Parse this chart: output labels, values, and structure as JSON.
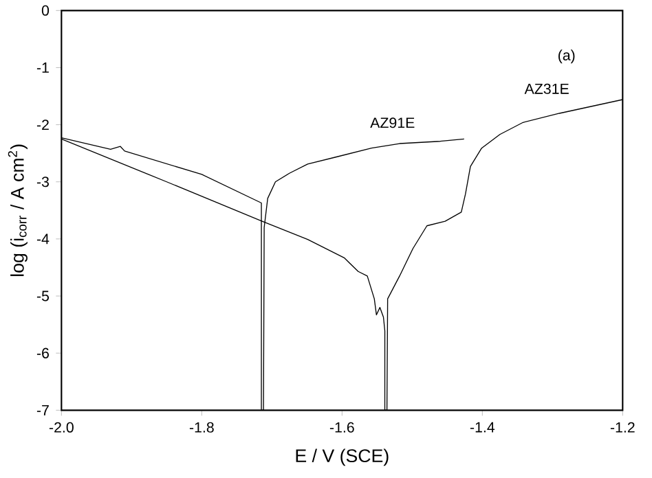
{
  "chart_data": {
    "type": "line",
    "xlabel": "E / V (SCE)",
    "ylabel": "log (i$_{corr}$ / A cm$^{2}$)",
    "annotations": [
      "(a)"
    ],
    "series": [
      {
        "name": "AZ91E",
        "color": "#000000",
        "x": [
          -2.0,
          -1.93,
          -1.916,
          -1.91,
          -1.8,
          -1.715,
          -1.715,
          -1.712,
          -1.711,
          -1.706,
          -1.695,
          -1.675,
          -1.649,
          -1.61,
          -1.558,
          -1.518,
          -1.46,
          -1.426
        ],
        "values": [
          -2.23,
          -2.43,
          -2.38,
          -2.46,
          -2.87,
          -3.37,
          -7.0,
          -7.0,
          -3.8,
          -3.29,
          -3.0,
          -2.85,
          -2.69,
          -2.57,
          -2.41,
          -2.33,
          -2.29,
          -2.25
        ]
      },
      {
        "name": "AZ31E",
        "color": "#000000",
        "x": [
          -2.0,
          -1.85,
          -1.714,
          -1.649,
          -1.597,
          -1.577,
          -1.564,
          -1.554,
          -1.551,
          -1.546,
          -1.541,
          -1.539,
          -1.539,
          -1.536,
          -1.535,
          -1.518,
          -1.499,
          -1.479,
          -1.453,
          -1.43,
          -1.424,
          -1.417,
          -1.401,
          -1.375,
          -1.342,
          -1.29,
          -1.2
        ],
        "values": [
          -2.25,
          -3.0,
          -3.69,
          -4.01,
          -4.33,
          -4.57,
          -4.65,
          -5.05,
          -5.33,
          -5.2,
          -5.37,
          -5.61,
          -7.0,
          -7.0,
          -5.05,
          -4.65,
          -4.17,
          -3.77,
          -3.69,
          -3.53,
          -3.21,
          -2.73,
          -2.41,
          -2.17,
          -1.96,
          -1.8,
          -1.56
        ]
      }
    ],
    "xlim": [
      -2.0,
      -1.2
    ],
    "ylim": [
      -7,
      0
    ],
    "xticks": [
      {
        "value": -2.0,
        "label": "-2.0"
      },
      {
        "value": -1.8,
        "label": "-1.8"
      },
      {
        "value": -1.6,
        "label": "-1.6"
      },
      {
        "value": -1.4,
        "label": "-1.4"
      },
      {
        "value": -1.2,
        "label": "-1.2"
      }
    ],
    "yticks": [
      0,
      -1,
      -2,
      -3,
      -4,
      -5,
      -6,
      -7
    ],
    "grid": false,
    "legend": false,
    "marker": "none",
    "line_style": "solid"
  }
}
